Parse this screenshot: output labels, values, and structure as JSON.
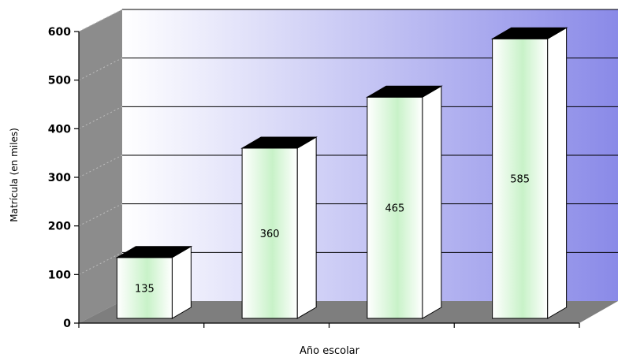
{
  "chart_data": {
    "type": "bar",
    "title": "",
    "xlabel": "Año escolar",
    "ylabel": "Matrícula (en miles)",
    "categories": [
      "",
      "",
      "",
      ""
    ],
    "values": [
      135,
      360,
      465,
      585
    ],
    "data_labels": [
      "135",
      "360",
      "465",
      "585"
    ],
    "ylim": [
      0,
      600
    ],
    "yticks": [
      0,
      100,
      200,
      300,
      400,
      500,
      600
    ],
    "ytick_labels": [
      "0",
      "100",
      "200",
      "300",
      "400",
      "500",
      "600"
    ],
    "grid": true,
    "legend": "none",
    "style": "3d-column",
    "colors": {
      "wall_gradient_start": "#ffffff",
      "wall_gradient_end": "#8a8ae8",
      "side_wall": "#8c8c8c",
      "floor": "#7e7e7e",
      "bar_face_start": "#ffffff",
      "bar_face_end": "#c8f2c8",
      "bar_side": "#ffffff",
      "bar_top": "#000000",
      "gridline": "#000000"
    }
  }
}
